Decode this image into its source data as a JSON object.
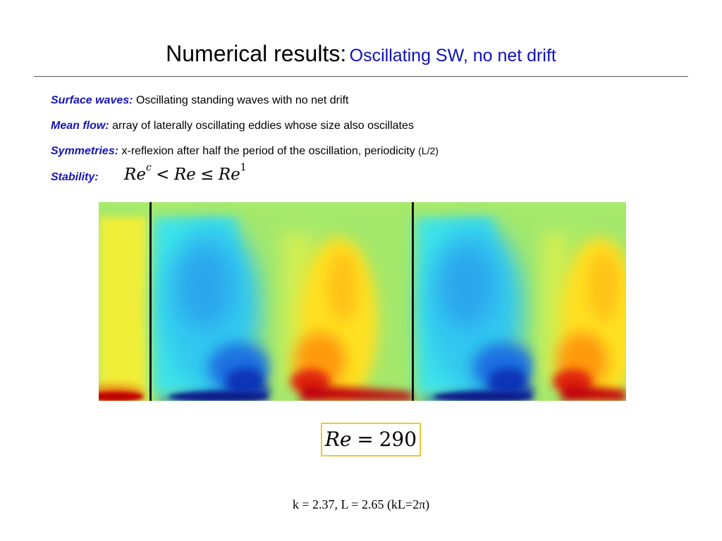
{
  "slide": {
    "title_main": "Numerical results:",
    "title_sub": "Oscillating SW, no net drift",
    "bullets": [
      {
        "label": "Surface waves:",
        "text": "Oscillating standing waves with no net drift",
        "suffix": ""
      },
      {
        "label": "Mean flow:",
        "text": "array of laterally oscillating eddies whose size also oscillates",
        "suffix": ""
      },
      {
        "label": "Symmetries:",
        "text": "x-reflexion after half the period of the oscillation, periodicity",
        "suffix": "(L/2)"
      },
      {
        "label": "Stability:",
        "text": "",
        "suffix": ""
      }
    ],
    "stability_formula": {
      "re1": "Re",
      "sup1": "c",
      "op1": "<",
      "re2": "Re",
      "op2": "≤",
      "re3": "Re",
      "sup3": "1"
    },
    "re_box": {
      "lhs": "Re",
      "eq": "=",
      "value": "290"
    },
    "caption": "k = 2.37, L = 2.65 (kL=2π)"
  },
  "colors": {
    "label_blue": "#1515b8",
    "title_blue": "#1010c0",
    "box_border": "#f0c828",
    "field_background": "#9ee86a",
    "cold": "#0a28a8",
    "hot": "#b80012"
  }
}
